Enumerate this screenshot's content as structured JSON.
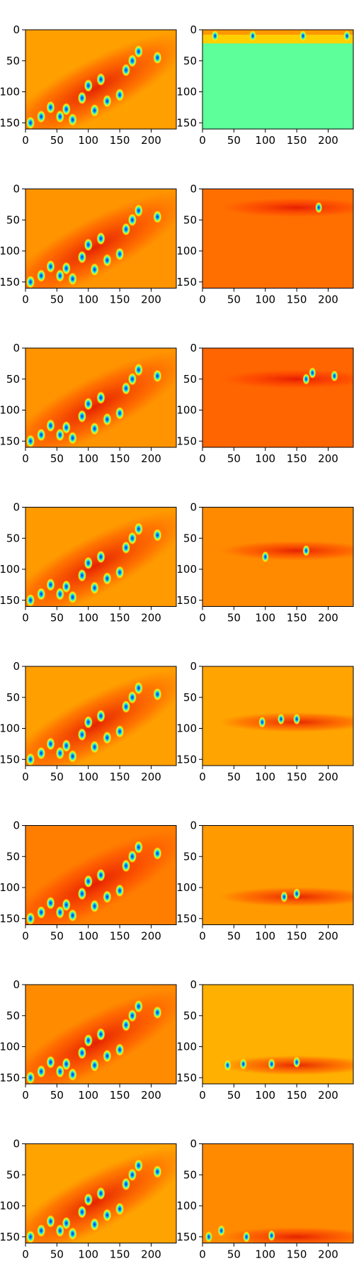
{
  "chart_data": {
    "type": "heatmap",
    "layout": "8 rows x 2 columns grid of heatmap panels",
    "colormap": "jet",
    "xlim": [
      0,
      240
    ],
    "ylim_inverted": [
      160,
      0
    ],
    "x_ticks": [
      0,
      50,
      100,
      150,
      200
    ],
    "y_ticks": [
      0,
      50,
      100,
      150
    ],
    "panel_background_colors": {
      "left_column": [
        "#ff9f00",
        "#ff9400",
        "#ff9400",
        "#ff9a00",
        "#ff9f00",
        "#ff7e00",
        "#ff8c00",
        "#ffa300"
      ],
      "right_column": [
        "#5cff9a",
        "#ff6f00",
        "#ff6500",
        "#ff8a00",
        "#ffa400",
        "#ff9a00",
        "#ffb000",
        "#ff8a00"
      ]
    },
    "right_column_band_centers_y": [
      10,
      30,
      50,
      70,
      90,
      115,
      130,
      150
    ],
    "left_column_feature_blobs": [
      {
        "x": 8,
        "y": 150
      },
      {
        "x": 25,
        "y": 140
      },
      {
        "x": 40,
        "y": 125
      },
      {
        "x": 55,
        "y": 140
      },
      {
        "x": 65,
        "y": 128
      },
      {
        "x": 75,
        "y": 145
      },
      {
        "x": 90,
        "y": 110
      },
      {
        "x": 100,
        "y": 90
      },
      {
        "x": 110,
        "y": 130
      },
      {
        "x": 120,
        "y": 80
      },
      {
        "x": 130,
        "y": 115
      },
      {
        "x": 150,
        "y": 105
      },
      {
        "x": 160,
        "y": 65
      },
      {
        "x": 170,
        "y": 50
      },
      {
        "x": 180,
        "y": 35
      },
      {
        "x": 210,
        "y": 45
      }
    ],
    "right_column_feature_blobs": [
      [
        {
          "x": 20,
          "y": 10
        },
        {
          "x": 80,
          "y": 10
        },
        {
          "x": 160,
          "y": 10
        },
        {
          "x": 230,
          "y": 10
        }
      ],
      [
        {
          "x": 185,
          "y": 30
        }
      ],
      [
        {
          "x": 165,
          "y": 50
        },
        {
          "x": 175,
          "y": 40
        },
        {
          "x": 210,
          "y": 45
        }
      ],
      [
        {
          "x": 100,
          "y": 80
        },
        {
          "x": 165,
          "y": 70
        }
      ],
      [
        {
          "x": 95,
          "y": 90
        },
        {
          "x": 125,
          "y": 85
        },
        {
          "x": 150,
          "y": 85
        }
      ],
      [
        {
          "x": 130,
          "y": 115
        },
        {
          "x": 150,
          "y": 110
        }
      ],
      [
        {
          "x": 40,
          "y": 130
        },
        {
          "x": 65,
          "y": 128
        },
        {
          "x": 110,
          "y": 128
        },
        {
          "x": 150,
          "y": 125
        }
      ],
      [
        {
          "x": 10,
          "y": 150
        },
        {
          "x": 30,
          "y": 140
        },
        {
          "x": 70,
          "y": 150
        },
        {
          "x": 110,
          "y": 148
        }
      ]
    ]
  }
}
